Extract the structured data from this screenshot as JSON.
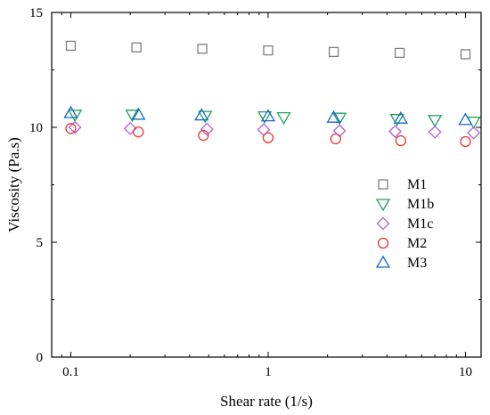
{
  "chart_data": {
    "type": "scatter",
    "title": "",
    "xlabel": "Shear rate (1/s)",
    "ylabel": "Viscosity (Pa.s)",
    "x_scale": "log",
    "xlim": [
      0.08,
      12
    ],
    "ylim": [
      0,
      15
    ],
    "x_ticks": [
      0.1,
      1,
      10
    ],
    "x_tick_labels": [
      "0.1",
      "1",
      "10"
    ],
    "y_ticks": [
      0,
      5,
      10,
      15
    ],
    "y_tick_labels": [
      "0",
      "5",
      "10",
      "15"
    ],
    "grid": false,
    "legend_placement": "right",
    "series": [
      {
        "name": "M1",
        "marker": "square",
        "color": "#7f7f7f",
        "x": [
          0.1,
          0.215,
          0.464,
          1,
          2.15,
          4.64,
          10
        ],
        "y": [
          13.55,
          13.48,
          13.42,
          13.35,
          13.28,
          13.24,
          13.18
        ]
      },
      {
        "name": "M1b",
        "marker": "triangle-down",
        "color": "#1aa35a",
        "x": [
          0.105,
          0.205,
          0.48,
          0.96,
          1.2,
          2.3,
          4.5,
          7.0,
          11.0
        ],
        "y": [
          10.55,
          10.55,
          10.5,
          10.48,
          10.44,
          10.42,
          10.36,
          10.32,
          10.25
        ]
      },
      {
        "name": "M1c",
        "marker": "diamond",
        "color": "#b25fd9",
        "x": [
          0.105,
          0.2,
          0.49,
          0.95,
          2.3,
          4.4,
          7.0,
          11.0
        ],
        "y": [
          10.0,
          9.95,
          9.92,
          9.9,
          9.85,
          9.82,
          9.8,
          9.76
        ]
      },
      {
        "name": "M2",
        "marker": "circle",
        "color": "#e8372e",
        "x": [
          0.1,
          0.22,
          0.47,
          1.0,
          2.2,
          4.7,
          10.0
        ],
        "y": [
          9.95,
          9.8,
          9.65,
          9.55,
          9.5,
          9.42,
          9.38
        ]
      },
      {
        "name": "M3",
        "marker": "triangle-up",
        "color": "#1668c9",
        "x": [
          0.1,
          0.22,
          0.46,
          1.0,
          2.15,
          4.7,
          10.0
        ],
        "y": [
          10.62,
          10.55,
          10.52,
          10.48,
          10.42,
          10.38,
          10.32
        ]
      }
    ]
  }
}
